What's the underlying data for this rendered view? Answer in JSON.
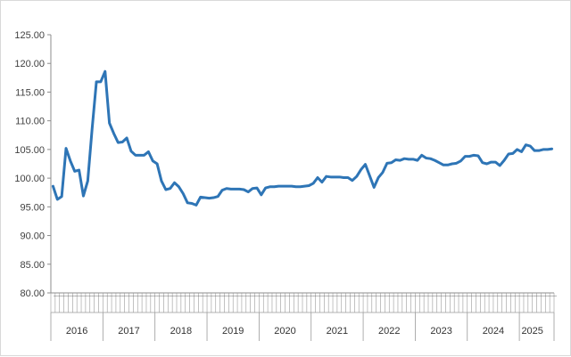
{
  "chart_data": {
    "type": "line",
    "title": "",
    "xlabel": "",
    "ylabel": "",
    "ylim": [
      80,
      125
    ],
    "yticks": [
      "80.00",
      "85.00",
      "90.00",
      "95.00",
      "100.00",
      "105.00",
      "110.00",
      "115.00",
      "120.00",
      "125.00"
    ],
    "years": [
      "2016",
      "2017",
      "2018",
      "2019",
      "2020",
      "2021",
      "2022",
      "2023",
      "2024",
      "2025"
    ],
    "months_per_year": [
      12,
      12,
      12,
      12,
      12,
      12,
      12,
      12,
      12,
      6
    ],
    "grid": false,
    "line_color": "#2e75b6",
    "series": [
      {
        "values": [
          98.6,
          96.3,
          96.8,
          105.2,
          103.0,
          101.2,
          101.4,
          96.9,
          99.5,
          108.5,
          116.8,
          116.8,
          118.6,
          109.6,
          107.8,
          106.2,
          106.3,
          107.0,
          104.7,
          104.0,
          104.0,
          104.0,
          104.6,
          103.0,
          102.5,
          99.5,
          98.0,
          98.2,
          99.2,
          98.5,
          97.3,
          95.7,
          95.6,
          95.3,
          96.7,
          96.6,
          96.5,
          96.6,
          96.8,
          97.9,
          98.2,
          98.1,
          98.1,
          98.1,
          98.0,
          97.6,
          98.2,
          98.3,
          97.1,
          98.3,
          98.5,
          98.5,
          98.6,
          98.6,
          98.6,
          98.6,
          98.5,
          98.5,
          98.6,
          98.7,
          99.1,
          100.1,
          99.3,
          100.3,
          100.2,
          100.2,
          100.2,
          100.1,
          100.1,
          99.6,
          100.3,
          101.5,
          102.4,
          100.4,
          98.4,
          100.1,
          101.0,
          102.6,
          102.7,
          103.2,
          103.1,
          103.4,
          103.3,
          103.3,
          103.1,
          104.0,
          103.5,
          103.4,
          103.1,
          102.7,
          102.3,
          102.3,
          102.5,
          102.6,
          103.0,
          103.8,
          103.8,
          104.0,
          103.9,
          102.7,
          102.5,
          102.8,
          102.8,
          102.2,
          103.1,
          104.2,
          104.3,
          105.0,
          104.6,
          105.8,
          105.6,
          104.8,
          104.8,
          105.0,
          105.0,
          105.1
        ]
      }
    ]
  }
}
